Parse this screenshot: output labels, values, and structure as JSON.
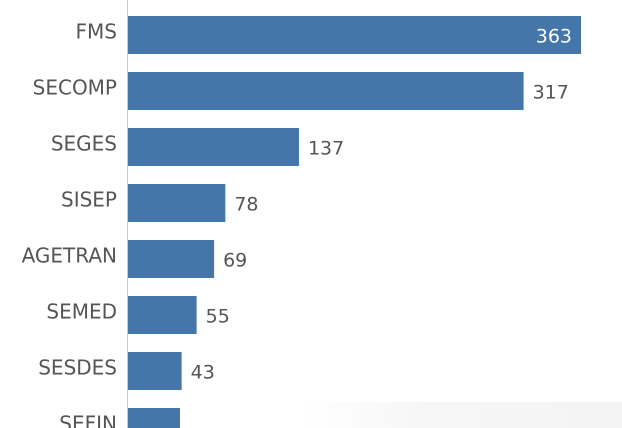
{
  "chart_data": {
    "type": "bar",
    "orientation": "horizontal",
    "categories": [
      "FMS",
      "SECOMP",
      "SEGES",
      "SISEP",
      "AGETRAN",
      "SEMED",
      "SESDES",
      "SEFIN"
    ],
    "values": [
      363,
      317,
      137,
      78,
      69,
      55,
      43,
      null
    ],
    "data_labels": [
      "363",
      "317",
      "137",
      "78",
      "69",
      "55",
      "43",
      ""
    ],
    "bar_color": "#4476aa",
    "label_color": "#555555",
    "inside_label_color": "#ffffff",
    "xlim": [
      0,
      363
    ]
  }
}
